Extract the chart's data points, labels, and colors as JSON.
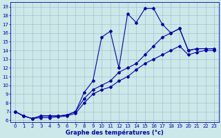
{
  "xlabel": "Graphe des températures (°c)",
  "xlim_min": -0.5,
  "xlim_max": 23.5,
  "ylim_min": 5.8,
  "ylim_max": 19.5,
  "yticks": [
    6,
    7,
    8,
    9,
    10,
    11,
    12,
    13,
    14,
    15,
    16,
    17,
    18,
    19
  ],
  "xticks": [
    0,
    1,
    2,
    3,
    4,
    5,
    6,
    7,
    8,
    9,
    10,
    11,
    12,
    13,
    14,
    15,
    16,
    17,
    18,
    19,
    20,
    21,
    22,
    23
  ],
  "bg_color": "#cce8e8",
  "line_color": "#0000aa",
  "grid_color": "#99bbcc",
  "peak_x": [
    0,
    1,
    2,
    3,
    4,
    5,
    6,
    7,
    8,
    9,
    10,
    11,
    12,
    13,
    14,
    15,
    16,
    17,
    18,
    19,
    20,
    21,
    22,
    23
  ],
  "peak_y": [
    7.0,
    6.5,
    6.2,
    6.5,
    6.5,
    6.5,
    6.6,
    7.0,
    9.2,
    10.5,
    15.5,
    16.2,
    12.0,
    18.2,
    17.2,
    18.8,
    18.8,
    17.0,
    16.0,
    16.5,
    14.0,
    14.2,
    14.2,
    14.2
  ],
  "upper_x": [
    0,
    1,
    2,
    3,
    4,
    5,
    6,
    7,
    8,
    9,
    10,
    11,
    12,
    13,
    14,
    15,
    16,
    17,
    18,
    19,
    20,
    21,
    22,
    23
  ],
  "upper_y": [
    7.0,
    6.5,
    6.2,
    6.5,
    6.5,
    6.5,
    6.6,
    7.0,
    8.5,
    9.5,
    10.0,
    10.5,
    11.5,
    12.0,
    12.5,
    13.5,
    14.5,
    15.5,
    16.0,
    16.5,
    14.0,
    14.2,
    14.2,
    14.2
  ],
  "lower_x": [
    0,
    1,
    2,
    3,
    4,
    5,
    6,
    7,
    8,
    9,
    10,
    11,
    12,
    13,
    14,
    15,
    16,
    17,
    18,
    19,
    20,
    21,
    22,
    23
  ],
  "lower_y": [
    7.0,
    6.5,
    6.2,
    6.3,
    6.3,
    6.4,
    6.5,
    6.8,
    8.0,
    9.0,
    9.5,
    9.8,
    10.5,
    11.0,
    11.8,
    12.5,
    13.0,
    13.5,
    14.0,
    14.5,
    13.5,
    13.8,
    14.0,
    14.0
  ],
  "tick_fontsize": 5,
  "xlabel_fontsize": 6,
  "marker_size": 2.0,
  "line_width": 0.8
}
